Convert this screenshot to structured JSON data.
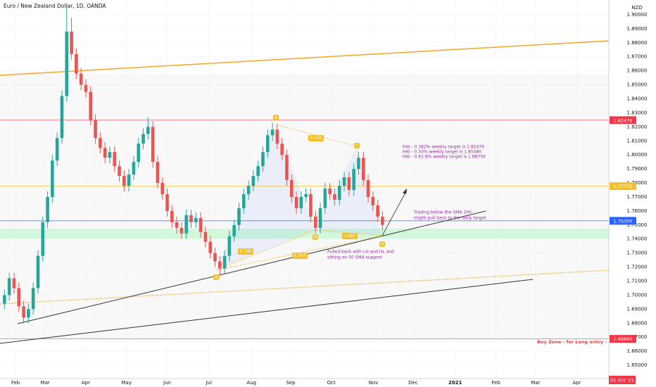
{
  "chart_data": {
    "type": "candlestick",
    "title": "Euro / New Zealand Dollar, 1D, OANDA",
    "currency": "NZD",
    "date_badge": "01 Oct '21",
    "up_color": "#26a69a",
    "down_color": "#ef5350",
    "open": [
      1.694,
      1.7,
      1.712,
      1.705,
      1.692,
      1.684,
      1.69,
      1.705,
      1.728,
      1.752,
      1.77,
      1.796,
      1.812,
      1.842,
      1.888,
      1.872,
      1.858,
      1.85,
      1.845,
      1.825,
      1.812,
      1.805,
      1.798,
      1.802,
      1.792,
      1.785,
      1.778,
      1.786,
      1.795,
      1.808,
      1.815,
      1.82,
      1.795,
      1.78,
      1.772,
      1.76,
      1.752,
      1.748,
      1.744,
      1.757,
      1.752,
      1.755,
      1.745,
      1.738,
      1.73,
      1.724,
      1.719,
      1.728,
      1.742,
      1.75,
      1.762,
      1.772,
      1.778,
      1.785,
      1.792,
      1.802,
      1.814,
      1.818,
      1.808,
      1.8,
      1.782,
      1.77,
      1.762,
      1.77,
      1.772,
      1.756,
      1.748,
      1.762,
      1.776,
      1.772,
      1.768,
      1.778,
      1.784,
      1.775,
      1.79,
      1.798,
      1.782,
      1.77,
      1.764,
      1.756
    ],
    "high": [
      1.704,
      1.716,
      1.716,
      1.709,
      1.696,
      1.694,
      1.709,
      1.732,
      1.756,
      1.774,
      1.8,
      1.816,
      1.846,
      1.905,
      1.898,
      1.876,
      1.862,
      1.854,
      1.849,
      1.829,
      1.816,
      1.809,
      1.806,
      1.806,
      1.796,
      1.789,
      1.79,
      1.799,
      1.812,
      1.819,
      1.827,
      1.824,
      1.799,
      1.784,
      1.776,
      1.764,
      1.756,
      1.752,
      1.761,
      1.761,
      1.759,
      1.759,
      1.749,
      1.742,
      1.734,
      1.728,
      1.732,
      1.746,
      1.754,
      1.766,
      1.776,
      1.782,
      1.789,
      1.796,
      1.806,
      1.818,
      1.823,
      1.822,
      1.812,
      1.804,
      1.786,
      1.774,
      1.774,
      1.776,
      1.776,
      1.76,
      1.766,
      1.78,
      1.78,
      1.776,
      1.782,
      1.788,
      1.788,
      1.794,
      1.802,
      1.802,
      1.786,
      1.774,
      1.768,
      1.76
    ],
    "low": [
      1.69,
      1.696,
      1.701,
      1.688,
      1.68,
      1.68,
      1.686,
      1.701,
      1.724,
      1.748,
      1.766,
      1.792,
      1.808,
      1.838,
      1.868,
      1.854,
      1.846,
      1.841,
      1.821,
      1.808,
      1.801,
      1.794,
      1.794,
      1.788,
      1.781,
      1.774,
      1.774,
      1.782,
      1.791,
      1.804,
      1.811,
      1.791,
      1.776,
      1.768,
      1.756,
      1.748,
      1.744,
      1.74,
      1.74,
      1.748,
      1.748,
      1.741,
      1.734,
      1.726,
      1.72,
      1.714,
      1.715,
      1.724,
      1.738,
      1.746,
      1.758,
      1.768,
      1.774,
      1.781,
      1.788,
      1.798,
      1.81,
      1.804,
      1.796,
      1.778,
      1.766,
      1.758,
      1.758,
      1.766,
      1.752,
      1.744,
      1.744,
      1.758,
      1.768,
      1.764,
      1.764,
      1.774,
      1.771,
      1.771,
      1.786,
      1.778,
      1.766,
      1.76,
      1.752,
      1.746
    ],
    "close": [
      1.7,
      1.712,
      1.705,
      1.692,
      1.684,
      1.69,
      1.705,
      1.728,
      1.752,
      1.77,
      1.796,
      1.812,
      1.842,
      1.888,
      1.872,
      1.858,
      1.85,
      1.845,
      1.825,
      1.812,
      1.805,
      1.798,
      1.802,
      1.792,
      1.785,
      1.778,
      1.786,
      1.795,
      1.808,
      1.815,
      1.82,
      1.795,
      1.78,
      1.772,
      1.76,
      1.752,
      1.748,
      1.744,
      1.757,
      1.752,
      1.755,
      1.745,
      1.738,
      1.73,
      1.724,
      1.719,
      1.728,
      1.742,
      1.75,
      1.762,
      1.772,
      1.778,
      1.785,
      1.792,
      1.802,
      1.814,
      1.818,
      1.808,
      1.8,
      1.782,
      1.77,
      1.762,
      1.77,
      1.772,
      1.756,
      1.748,
      1.762,
      1.776,
      1.772,
      1.768,
      1.778,
      1.784,
      1.775,
      1.79,
      1.798,
      1.782,
      1.77,
      1.764,
      1.756,
      1.75
    ],
    "xlim": [
      -0.94,
      126.3
    ],
    "xticks": [
      {
        "value": 2.3,
        "label": "Feb"
      },
      {
        "value": 8.5,
        "label": "Mar"
      },
      {
        "value": 17,
        "label": "Apr"
      },
      {
        "value": 25.5,
        "label": "May"
      },
      {
        "value": 34,
        "label": "Jun"
      },
      {
        "value": 42.7,
        "label": "Jul"
      },
      {
        "value": 51.6,
        "label": "Aug"
      },
      {
        "value": 59.8,
        "label": "Sep"
      },
      {
        "value": 68.3,
        "label": "Oct"
      },
      {
        "value": 77.1,
        "label": "Nov"
      },
      {
        "value": 85.4,
        "label": "Dec"
      },
      {
        "value": 94.2,
        "label": "2021"
      },
      {
        "value": 102.7,
        "label": "Feb"
      },
      {
        "value": 111,
        "label": "Mar"
      },
      {
        "value": 119.6,
        "label": "Apr"
      }
    ],
    "ylim": [
      1.6405,
      1.9105
    ],
    "yticks": [
      {
        "value": 1.65,
        "label": "1.65000"
      },
      {
        "value": 1.66,
        "label": "1.66000"
      },
      {
        "value": 1.67,
        "label": "1.67000"
      },
      {
        "value": 1.68,
        "label": "1.68000"
      },
      {
        "value": 1.69,
        "label": "1.69000"
      },
      {
        "value": 1.7,
        "label": "1.70000"
      },
      {
        "value": 1.71,
        "label": "1.71000"
      },
      {
        "value": 1.72,
        "label": "1.72000"
      },
      {
        "value": 1.73,
        "label": "1.73000"
      },
      {
        "value": 1.74,
        "label": "1.74000"
      },
      {
        "value": 1.75,
        "label": "1.75000"
      },
      {
        "value": 1.76,
        "label": "1.76000"
      },
      {
        "value": 1.77,
        "label": "1.77000"
      },
      {
        "value": 1.78,
        "label": "1.78000"
      },
      {
        "value": 1.79,
        "label": "1.79000"
      },
      {
        "value": 1.8,
        "label": "1.80000"
      },
      {
        "value": 1.81,
        "label": "1.81000"
      },
      {
        "value": 1.82,
        "label": "1.82000"
      },
      {
        "value": 1.83,
        "label": "1.83000"
      },
      {
        "value": 1.84,
        "label": "1.84000"
      },
      {
        "value": 1.85,
        "label": "1.85000"
      },
      {
        "value": 1.86,
        "label": "1.86000"
      },
      {
        "value": 1.87,
        "label": "1.87000"
      },
      {
        "value": 1.88,
        "label": "1.88000"
      },
      {
        "value": 1.89,
        "label": "1.89000"
      },
      {
        "value": 1.9,
        "label": "1.90000"
      }
    ],
    "price_lines": [
      {
        "value": 1.82479,
        "label": "1.82479",
        "color": "#f23645"
      },
      {
        "value": 1.77773,
        "label": "1.77773",
        "color": "#f5c026"
      },
      {
        "value": 1.753,
        "label": "1.75300",
        "color": "#2962ff"
      },
      {
        "value": 1.6688,
        "label": "1.66880",
        "color": "#f23645"
      }
    ],
    "pattern_points": [
      "X",
      "A",
      "B",
      "C",
      "D"
    ],
    "ratios": [
      0.735,
      0.742,
      0.797,
      1.287
    ],
    "annotations": [
      "Feb - 0.382% weekly target is 1.82479",
      "Feb - 0.50% weekly target is 1.85480",
      "Feb - 0.61.8% weekly target is 1.88756",
      "Trading below the SMA 200 -",
      "might pull back to the daily target",
      "Pulled back with LH and HL and",
      "sitting on 50 SMA support",
      "Buy Zone - for Long entry -"
    ]
  }
}
